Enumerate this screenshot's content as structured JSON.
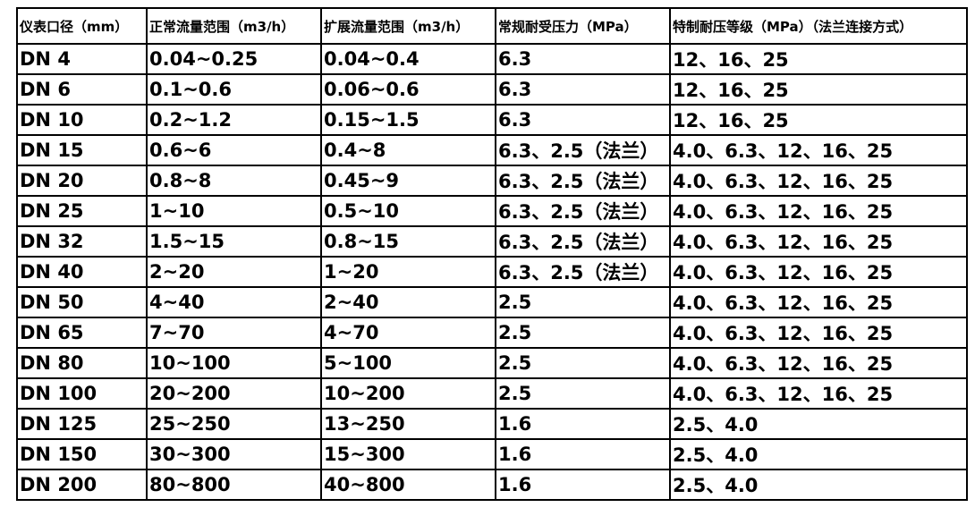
{
  "table": {
    "header": [
      "仪表口径（mm）",
      "正常流量范围（m3/h）",
      "扩展流量范围（m3/h）",
      "常规耐受压力（MPa）",
      "特制耐压等级（MPa）（法兰连接方式）"
    ],
    "rows": [
      [
        "DN 4",
        "0.04~0.25",
        "0.04~0.4",
        "6.3",
        "12、16、25"
      ],
      [
        "DN 6",
        "0.1~0.6",
        "0.06~0.6",
        "6.3",
        "12、16、25"
      ],
      [
        "DN 10",
        "0.2~1.2",
        "0.15~1.5",
        "6.3",
        "12、16、25"
      ],
      [
        "DN 15",
        "0.6~6",
        "0.4~8",
        "6.3、2.5（法兰）",
        "4.0、6.3、12、16、25"
      ],
      [
        "DN 20",
        "0.8~8",
        "0.45~9",
        "6.3、2.5（法兰）",
        "4.0、6.3、12、16、25"
      ],
      [
        "DN 25",
        "1~10",
        "0.5~10",
        "6.3、2.5（法兰）",
        "4.0、6.3、12、16、25"
      ],
      [
        "DN 32",
        "1.5~15",
        "0.8~15",
        "6.3、2.5（法兰）",
        "4.0、6.3、12、16、25"
      ],
      [
        "DN 40",
        "2~20",
        "1~20",
        "6.3、2.5（法兰）",
        "4.0、6.3、12、16、25"
      ],
      [
        "DN 50",
        "4~40",
        "2~40",
        "2.5",
        "4.0、6.3、12、16、25"
      ],
      [
        "DN 65",
        "7~70",
        "4~70",
        "2.5",
        "4.0、6.3、12、16、25"
      ],
      [
        "DN 80",
        "10~100",
        "5~100",
        "2.5",
        "4.0、6.3、12、16、25"
      ],
      [
        "DN 100",
        "20~200",
        "10~200",
        "2.5",
        "4.0、6.3、12、16、25"
      ],
      [
        "DN 125",
        "25~250",
        "13~250",
        "1.6",
        "2.5、4.0"
      ],
      [
        "DN 150",
        "30~300",
        "15~300",
        "1.6",
        "2.5、4.0"
      ],
      [
        "DN 200",
        "80~800",
        "40~800",
        "1.6",
        "2.5、4.0"
      ]
    ]
  }
}
